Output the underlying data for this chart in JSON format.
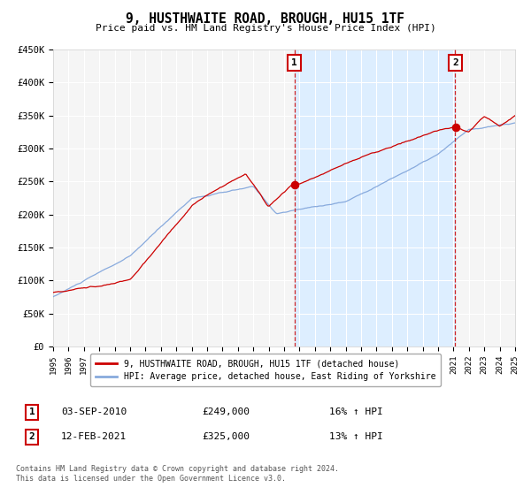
{
  "title": "9, HUSTHWAITE ROAD, BROUGH, HU15 1TF",
  "subtitle": "Price paid vs. HM Land Registry's House Price Index (HPI)",
  "legend_label_red": "9, HUSTHWAITE ROAD, BROUGH, HU15 1TF (detached house)",
  "legend_label_blue": "HPI: Average price, detached house, East Riding of Yorkshire",
  "sale1_label": "1",
  "sale1_date": "03-SEP-2010",
  "sale1_price": "£249,000",
  "sale1_hpi": "16% ↑ HPI",
  "sale1_year": 2010.67,
  "sale1_dot_value": 249000,
  "sale2_label": "2",
  "sale2_date": "12-FEB-2021",
  "sale2_price": "£325,000",
  "sale2_hpi": "13% ↑ HPI",
  "sale2_year": 2021.12,
  "sale2_dot_value": 325000,
  "footnote1": "Contains HM Land Registry data © Crown copyright and database right 2024.",
  "footnote2": "This data is licensed under the Open Government Licence v3.0.",
  "xmin": 1995,
  "xmax": 2025,
  "ymin": 0,
  "ymax": 450000,
  "yticks": [
    0,
    50000,
    100000,
    150000,
    200000,
    250000,
    300000,
    350000,
    400000,
    450000
  ],
  "ytick_labels": [
    "£0",
    "£50K",
    "£100K",
    "£150K",
    "£200K",
    "£250K",
    "£300K",
    "£350K",
    "£400K",
    "£450K"
  ],
  "red_color": "#cc0000",
  "blue_color": "#88aadd",
  "shaded_color": "#ddeeff",
  "background_color": "#f5f5f5"
}
